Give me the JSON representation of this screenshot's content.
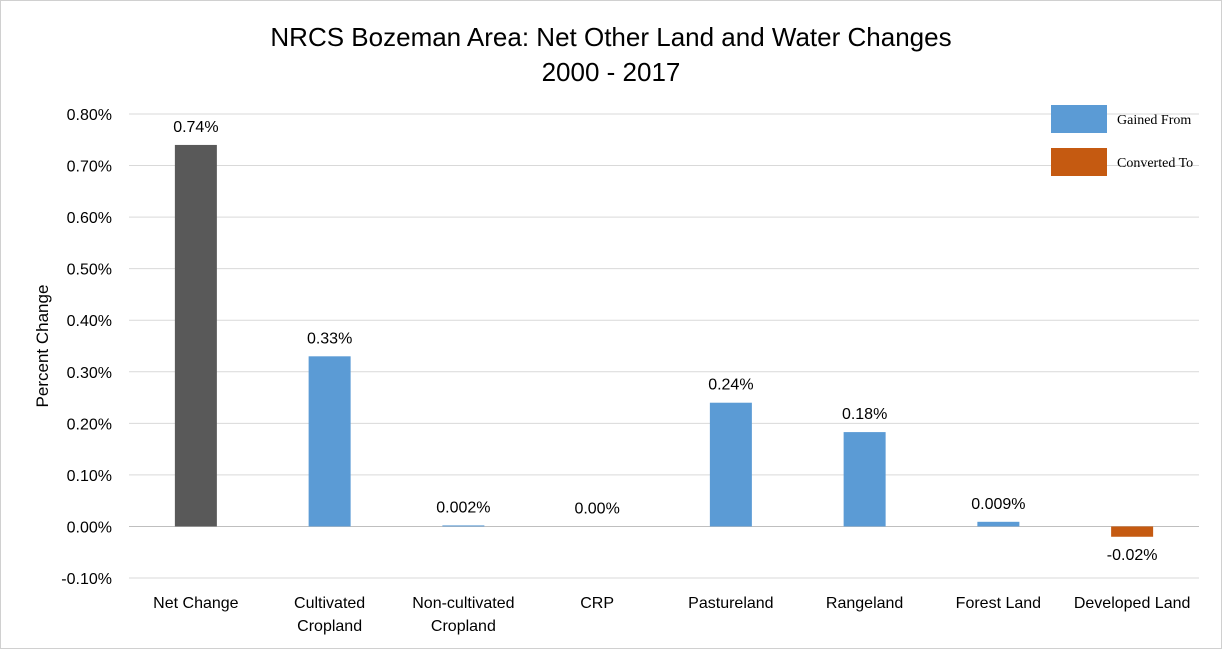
{
  "chart_data": {
    "type": "bar",
    "title_lines": [
      "NRCS Bozeman Area: Net Other Land and Water Changes",
      "2000 - 2017"
    ],
    "ylabel": "Percent Change",
    "xlabel": "",
    "ylim": [
      -0.1,
      0.8
    ],
    "y_ticks": [
      "0.80%",
      "0.70%",
      "0.60%",
      "0.50%",
      "0.40%",
      "0.30%",
      "0.20%",
      "0.10%",
      "0.00%",
      "-0.10%"
    ],
    "y_tick_values": [
      0.8,
      0.7,
      0.6,
      0.5,
      0.4,
      0.3,
      0.2,
      0.1,
      0.0,
      -0.1
    ],
    "grid": true,
    "legend_position": "top-right",
    "legend": [
      {
        "label": "Gained From",
        "color": "#5B9BD5"
      },
      {
        "label": "Converted To",
        "color": "#C55A11"
      }
    ],
    "categories": [
      [
        "Net Change"
      ],
      [
        "Cultivated",
        "Cropland"
      ],
      [
        "Non-cultivated",
        "Cropland"
      ],
      [
        "CRP"
      ],
      [
        "Pastureland"
      ],
      [
        "Rangeland"
      ],
      [
        "Forest Land"
      ],
      [
        "Developed Land"
      ]
    ],
    "values": [
      0.74,
      0.33,
      0.002,
      0.0,
      0.24,
      0.183,
      0.009,
      -0.02
    ],
    "data_labels": [
      "0.74%",
      "0.33%",
      "0.002%",
      "0.00%",
      "0.24%",
      "0.18%",
      "0.009%",
      "-0.02%"
    ],
    "bar_colors": [
      "#595959",
      "#5B9BD5",
      "#5B9BD5",
      "#5B9BD5",
      "#5B9BD5",
      "#5B9BD5",
      "#5B9BD5",
      "#C55A11"
    ]
  }
}
